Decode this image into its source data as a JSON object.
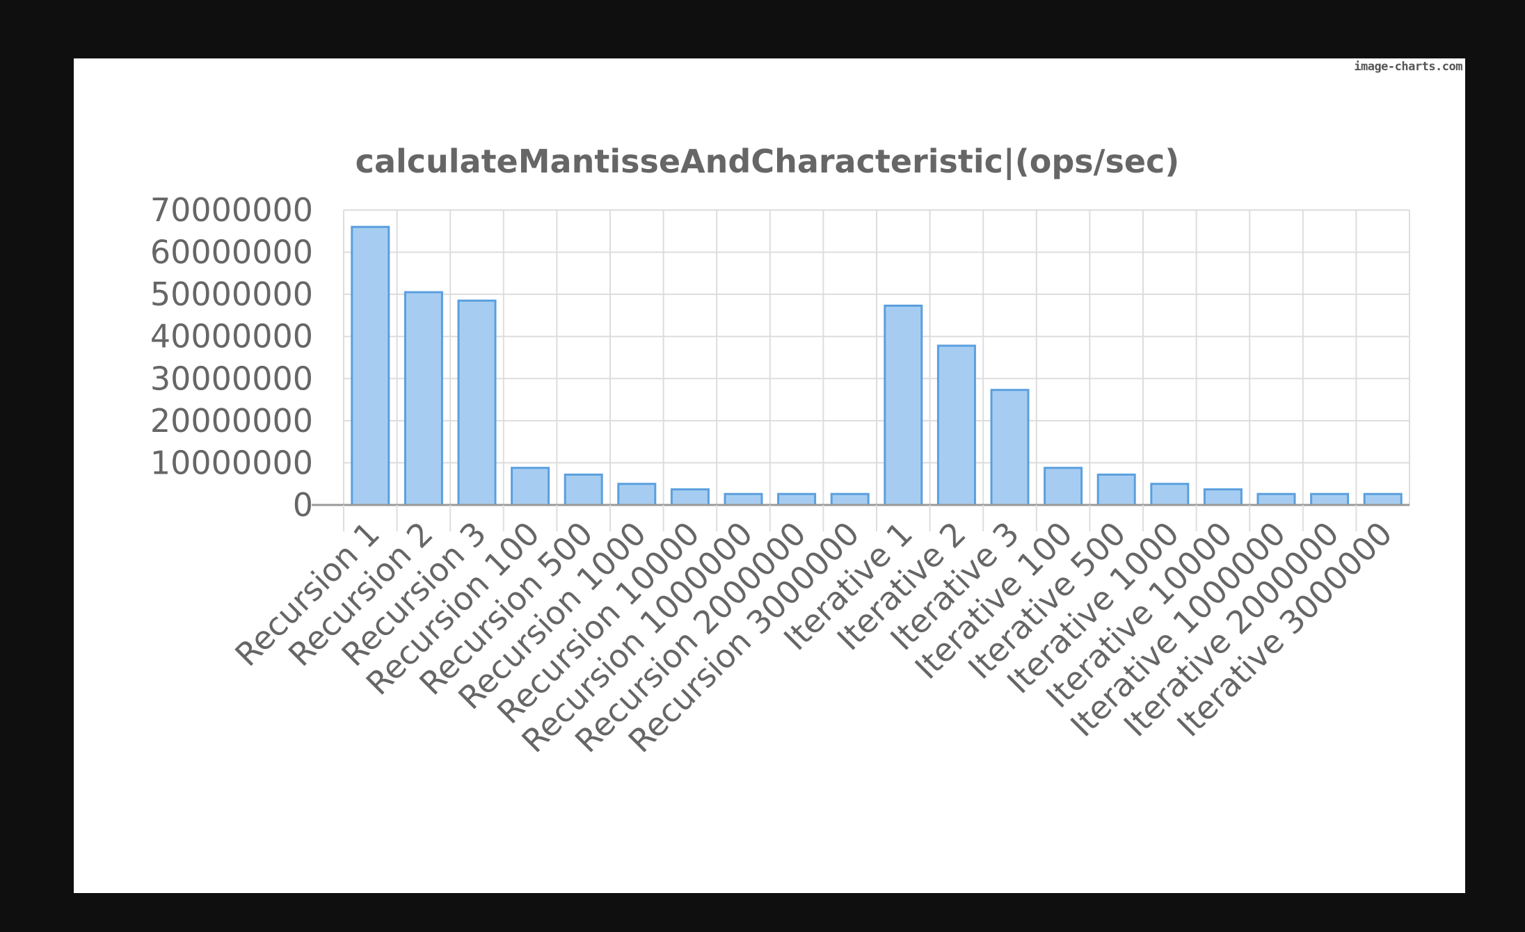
{
  "watermark": "image-charts.com",
  "colors": {
    "background": "#0f0f0f",
    "bar_fill": "#a6cdf1",
    "bar_stroke": "#5b9fde",
    "grid": "#dddddd",
    "text": "#666666"
  },
  "chart_data": {
    "type": "bar",
    "title": "calculateMantisseAndCharacteristic|(ops/sec)",
    "xlabel": "",
    "ylabel": "",
    "ylim": [
      0,
      70000000
    ],
    "yticks": [
      0,
      10000000,
      20000000,
      30000000,
      40000000,
      50000000,
      60000000,
      70000000
    ],
    "grid": true,
    "legend": "none",
    "categories": [
      "Recursion 1",
      "Recursion 2",
      "Recursion 3",
      "Recursion 100",
      "Recursion 500",
      "Recursion 1000",
      "Recursion 10000",
      "Recursion 1000000",
      "Recursion 2000000",
      "Recursion 3000000",
      "Iterative 1",
      "Iterative 2",
      "Iterative 3",
      "Iterative 100",
      "Iterative 500",
      "Iterative 1000",
      "Iterative 10000",
      "Iterative 1000000",
      "Iterative 2000000",
      "Iterative 3000000"
    ],
    "values": [
      66000000,
      50500000,
      48500000,
      8800000,
      7200000,
      5000000,
      3700000,
      2600000,
      2600000,
      2600000,
      47300000,
      37800000,
      27300000,
      8800000,
      7200000,
      5000000,
      3700000,
      2600000,
      2600000,
      2600000
    ]
  }
}
